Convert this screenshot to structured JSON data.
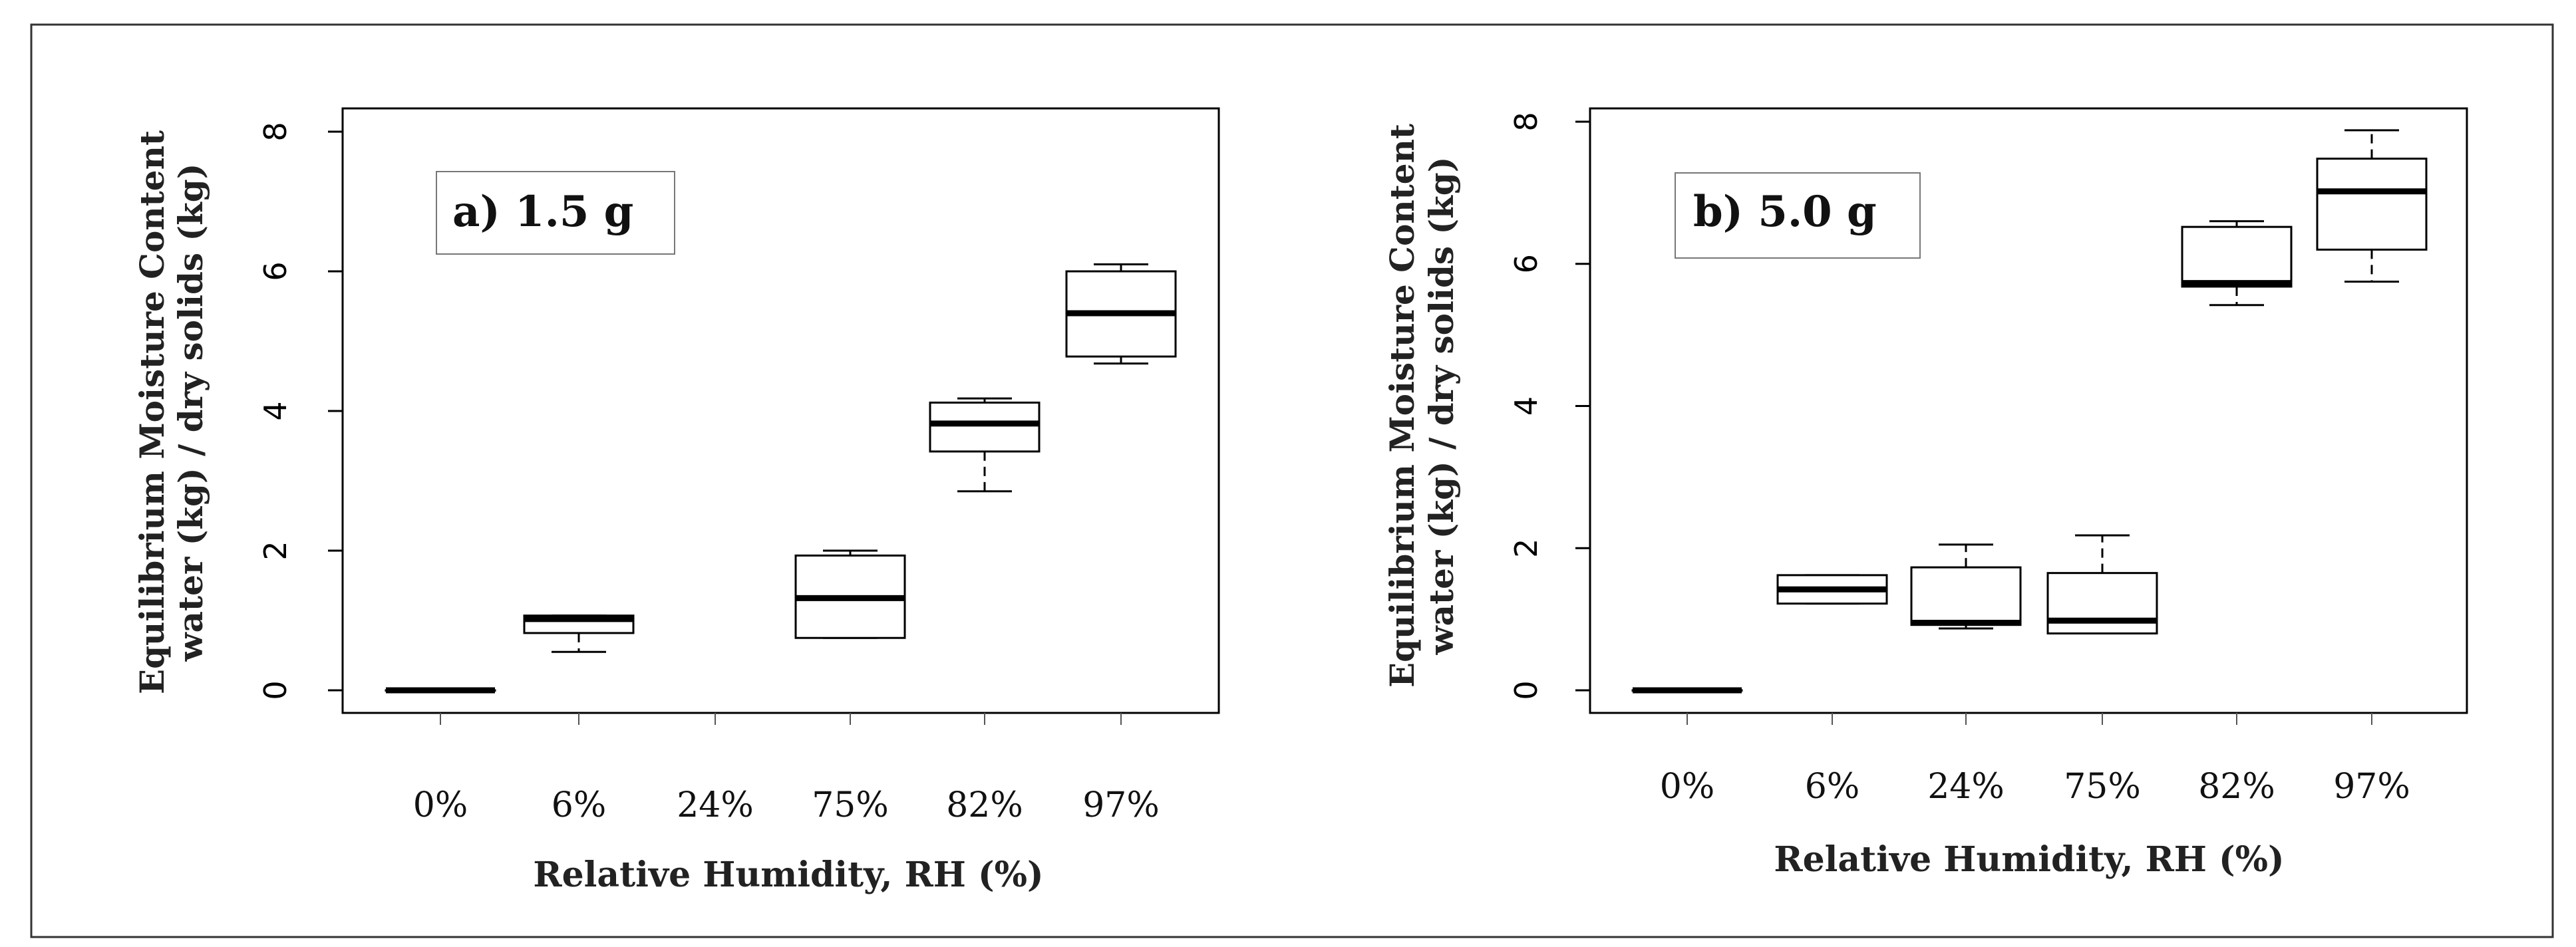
{
  "chart_data": [
    {
      "type": "box",
      "panel_label": "a) 1.5 g",
      "xlabel": "Relative Humidity, RH (%)",
      "ylabel_line1": "Equilibrium  Moisture Content",
      "ylabel_line2": "water (kg) / dry solids (kg)",
      "yticks": [
        "0",
        "2",
        "4",
        "6",
        "8"
      ],
      "ylim": [
        -0.3,
        8.4
      ],
      "categories": [
        "0%",
        "6%",
        "24%",
        "75%",
        "82%",
        "97%"
      ],
      "boxes": [
        {
          "category": "0%",
          "min": 0.0,
          "q1": 0.0,
          "median": 0.0,
          "q3": 0.0,
          "max": 0.0
        },
        {
          "category": "6%",
          "min": 0.55,
          "q1": 0.82,
          "median": 1.02,
          "q3": 1.07,
          "max": 1.07
        },
        {
          "category": "24%",
          "min": null,
          "q1": null,
          "median": null,
          "q3": null,
          "max": null
        },
        {
          "category": "75%",
          "min": 0.75,
          "q1": 0.75,
          "median": 1.32,
          "q3": 1.93,
          "max": 2.0
        },
        {
          "category": "82%",
          "min": 2.85,
          "q1": 3.42,
          "median": 3.82,
          "q3": 4.12,
          "max": 4.18
        },
        {
          "category": "97%",
          "min": 4.68,
          "q1": 4.78,
          "median": 5.4,
          "q3": 6.0,
          "max": 6.1
        }
      ]
    },
    {
      "type": "box",
      "panel_label": "b) 5.0 g",
      "xlabel": "Relative Humidity, RH (%)",
      "ylabel_line1": "Equilibrium  Moisture Content",
      "ylabel_line2": "water (kg) / dry solids (kg)",
      "yticks": [
        "0",
        "2",
        "4",
        "6",
        "8"
      ],
      "ylim": [
        -0.3,
        8.3
      ],
      "categories": [
        "0%",
        "6%",
        "24%",
        "75%",
        "82%",
        "97%"
      ],
      "boxes": [
        {
          "category": "0%",
          "min": 0.0,
          "q1": 0.0,
          "median": 0.0,
          "q3": 0.0,
          "max": 0.0
        },
        {
          "category": "6%",
          "min": 1.22,
          "q1": 1.22,
          "median": 1.42,
          "q3": 1.62,
          "max": 1.62
        },
        {
          "category": "24%",
          "min": 0.87,
          "q1": 0.92,
          "median": 0.95,
          "q3": 1.73,
          "max": 2.05
        },
        {
          "category": "75%",
          "min": 0.8,
          "q1": 0.8,
          "median": 0.98,
          "q3": 1.65,
          "max": 2.18
        },
        {
          "category": "82%",
          "min": 5.42,
          "q1": 5.68,
          "median": 5.73,
          "q3": 6.52,
          "max": 6.6
        },
        {
          "category": "97%",
          "min": 5.75,
          "q1": 6.2,
          "median": 7.02,
          "q3": 7.48,
          "max": 7.88
        }
      ]
    }
  ]
}
